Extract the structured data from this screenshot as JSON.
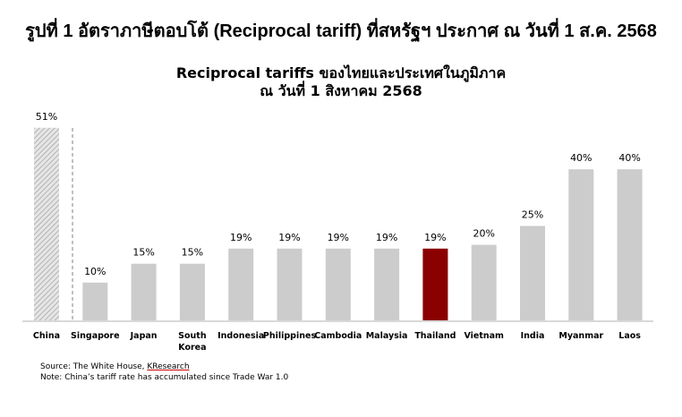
{
  "figure_title": "รูปที่ 1 อัตราภาษีตอบโต้ (Reciprocal tariff) ที่สหรัฐฯ ประกาศ ณ วันที่ 1 ส.ค. 2568",
  "chart_data": {
    "type": "bar",
    "title_line1": "Reciprocal tariffs ของไทยและประเทศในภูมิภาค",
    "title_line2": "ณ วันที่ 1 สิงหาคม 2568",
    "categories": [
      "China",
      "Singapore",
      "Japan",
      "South Korea",
      "Indonesia",
      "Philippines",
      "Cambodia",
      "Malaysia",
      "Thailand",
      "Vietnam",
      "India",
      "Myanmar",
      "Laos"
    ],
    "values": [
      51,
      10,
      15,
      15,
      19,
      19,
      19,
      19,
      19,
      20,
      25,
      40,
      40
    ],
    "data_labels": [
      "51%",
      "10%",
      "15%",
      "15%",
      "19%",
      "19%",
      "19%",
      "19%",
      "19%",
      "20%",
      "25%",
      "40%",
      "40%"
    ],
    "unit": "%",
    "ylim": [
      0,
      51
    ],
    "grid": false,
    "legend": "none",
    "highlight_category": "Thailand",
    "colors": {
      "default": "#cccccc",
      "highlight": "#8b0000",
      "hatched": "#bfbfbf",
      "baseline": "#d9d9d9"
    }
  },
  "source": {
    "prefix": "Source: The White House, ",
    "link": "KResearch",
    "note": "Note: China’s tariff rate has accumulated since Trade War 1.0"
  }
}
